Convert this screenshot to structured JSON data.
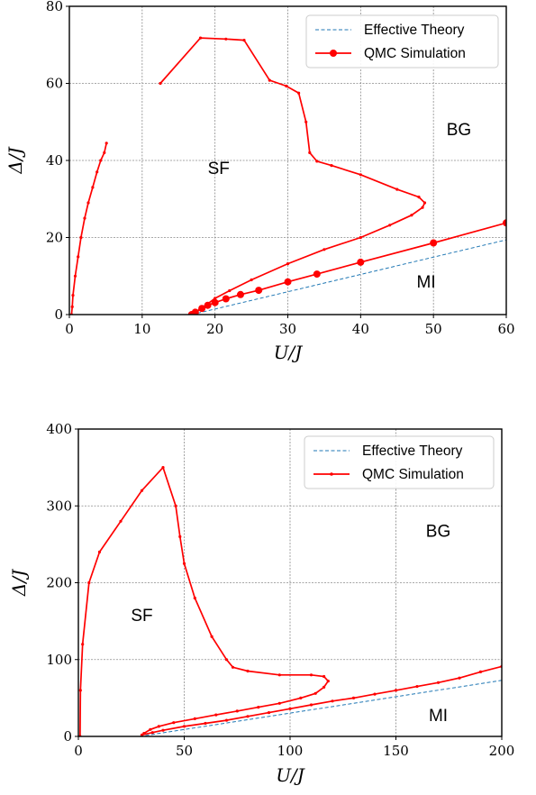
{
  "chart_data": [
    {
      "type": "line",
      "xlabel": "U/J",
      "ylabel": "Δ/J",
      "xlim": [
        0,
        60
      ],
      "ylim": [
        0,
        80
      ],
      "xticks": [
        "0",
        "10",
        "20",
        "30",
        "40",
        "50",
        "60"
      ],
      "yticks": [
        "0",
        "20",
        "40",
        "60",
        "80"
      ],
      "grid": true,
      "legend_position": "top-right",
      "regions": [
        {
          "label": "SF",
          "x": 20.5,
          "y": 36.5
        },
        {
          "label": "BG",
          "x": 53.5,
          "y": 46.5
        },
        {
          "label": "MI",
          "x": 49,
          "y": 7
        }
      ],
      "series": [
        {
          "name": "Effective Theory",
          "color": "#1f77b4",
          "style": "dashed",
          "x": [
            16.8,
            60
          ],
          "y": [
            0,
            19.4
          ]
        },
        {
          "name": "QMC Simulation",
          "color": "#ff0000",
          "style": "solid-marker",
          "markers": "large",
          "x": [
            16.8,
            17.3,
            18.2,
            19.0,
            20.0,
            21.5,
            23.5,
            26.0,
            30.0,
            34.0,
            40.0,
            50.0,
            60.0
          ],
          "y": [
            0.0,
            0.6,
            1.6,
            2.4,
            3.1,
            4.1,
            5.2,
            6.3,
            8.5,
            10.5,
            13.6,
            18.6,
            23.8
          ]
        },
        {
          "name": "",
          "color": "#ff0000",
          "style": "solid-small-marker",
          "x": [
            17.0,
            18.0,
            19.0,
            20.0,
            22.0,
            25.0,
            30.0,
            35.0,
            40.0,
            44.0,
            47.0,
            48.5,
            48.8,
            48.0,
            45.0,
            40.0,
            36.0,
            34.0,
            33.0,
            32.5,
            31.5,
            29.8,
            27.5,
            24.0,
            21.5,
            18.0,
            12.5
          ],
          "y": [
            0.3,
            1.5,
            2.8,
            4.2,
            6.2,
            9.0,
            13.2,
            16.9,
            20.0,
            23.2,
            25.8,
            27.8,
            29.0,
            30.5,
            32.5,
            36.3,
            38.7,
            39.8,
            42.0,
            50.0,
            57.5,
            59.3,
            60.8,
            71.2,
            71.5,
            71.8,
            60.0
          ]
        },
        {
          "name": "",
          "color": "#ff0000",
          "style": "solid-small-marker",
          "x": [
            0.3,
            0.4,
            0.5,
            0.8,
            1.2,
            1.6,
            2.1,
            2.6,
            3.2,
            3.8,
            4.3,
            4.8,
            5.1
          ],
          "y": [
            0,
            2,
            5,
            10,
            15,
            20,
            25,
            29,
            33,
            37,
            40,
            42,
            44.5
          ]
        }
      ]
    },
    {
      "type": "line",
      "xlabel": "U/J",
      "ylabel": "Δ/J",
      "xlim": [
        0,
        200
      ],
      "ylim": [
        0,
        400
      ],
      "xticks": [
        "0",
        "50",
        "100",
        "150",
        "200"
      ],
      "yticks": [
        "0",
        "100",
        "200",
        "300",
        "400"
      ],
      "grid": true,
      "legend_position": "top-right",
      "regions": [
        {
          "label": "SF",
          "x": 30,
          "y": 150
        },
        {
          "label": "BG",
          "x": 170,
          "y": 260
        },
        {
          "label": "MI",
          "x": 170,
          "y": 20
        }
      ],
      "series": [
        {
          "name": "Effective Theory",
          "color": "#1f77b4",
          "style": "dashed",
          "x": [
            29,
            200
          ],
          "y": [
            0,
            73
          ]
        },
        {
          "name": "QMC Simulation",
          "color": "#ff0000",
          "style": "solid-small-marker",
          "x": [
            30,
            35,
            40,
            50,
            60,
            70,
            80,
            90,
            100,
            110,
            120,
            130,
            140,
            150,
            160,
            170,
            180,
            190,
            200
          ],
          "y": [
            2,
            5,
            8,
            13,
            17,
            21,
            26,
            31,
            36,
            41,
            46,
            50,
            55,
            60,
            65,
            70,
            76,
            84,
            91
          ]
        },
        {
          "name": "",
          "color": "#ff0000",
          "style": "solid-small-marker",
          "x": [
            31,
            34,
            38,
            45,
            55,
            65,
            75,
            85,
            95,
            105,
            112,
            116,
            118,
            116,
            110,
            95,
            80,
            73,
            70,
            63,
            55,
            50,
            48,
            46,
            40,
            30,
            20,
            10,
            5,
            2,
            1,
            0.8
          ],
          "y": [
            4,
            9,
            13,
            18,
            23,
            28,
            33,
            38,
            43,
            50,
            56,
            64,
            72,
            78,
            80,
            80,
            85,
            90,
            100,
            130,
            180,
            225,
            260,
            300,
            350,
            320,
            280,
            240,
            200,
            120,
            60,
            0
          ]
        }
      ]
    }
  ]
}
